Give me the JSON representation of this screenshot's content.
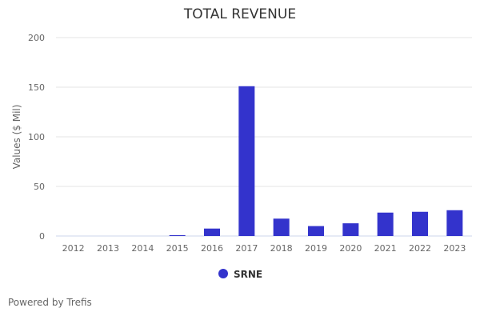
{
  "chart_data": {
    "type": "bar",
    "title": "TOTAL REVENUE",
    "ylabel": "Values ($ Mil)",
    "xlabel": "",
    "ylim": [
      0,
      200
    ],
    "yticks": [
      0,
      50,
      100,
      150,
      200
    ],
    "categories": [
      "2012",
      "2013",
      "2014",
      "2015",
      "2016",
      "2017",
      "2018",
      "2019",
      "2020",
      "2021",
      "2022",
      "2023"
    ],
    "series": [
      {
        "name": "SRNE",
        "color": "#3333cc",
        "values": [
          0,
          0,
          0,
          0.8,
          7.5,
          151,
          17.5,
          10,
          12.8,
          23.6,
          24.4,
          26
        ]
      }
    ],
    "grid": true,
    "legend": "bottom-center"
  },
  "footer": "Powered by Trefis"
}
